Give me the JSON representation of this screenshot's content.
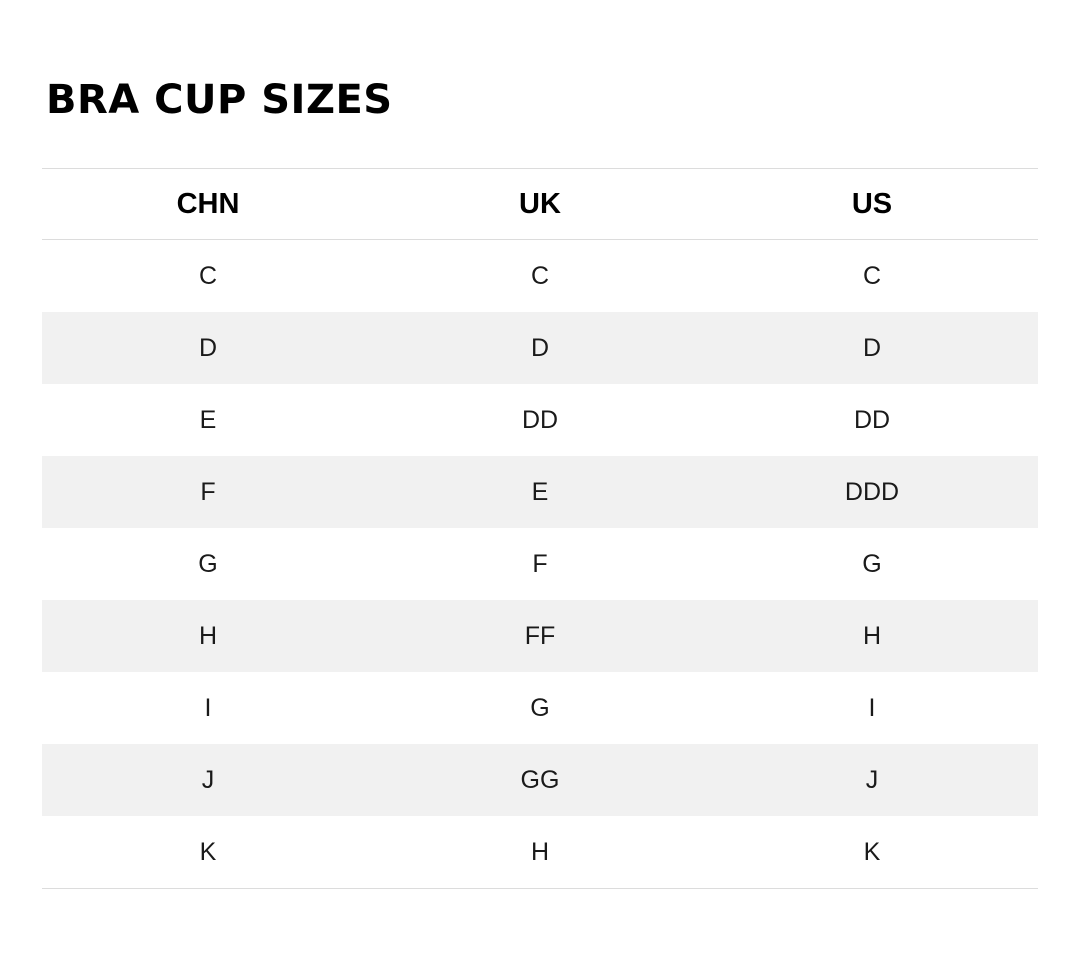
{
  "page": {
    "heading": "BRA CUP SIZES"
  },
  "size_table": {
    "columns": [
      "CHN",
      "UK",
      "US"
    ],
    "rows": [
      [
        "C",
        "C",
        "C"
      ],
      [
        "D",
        "D",
        "D"
      ],
      [
        "E",
        "DD",
        "DD"
      ],
      [
        "F",
        "E",
        "DDD"
      ],
      [
        "G",
        "F",
        "G"
      ],
      [
        "H",
        "FF",
        "H"
      ],
      [
        "I",
        "G",
        "I"
      ],
      [
        "J",
        "GG",
        "J"
      ],
      [
        "K",
        "H",
        "K"
      ]
    ]
  },
  "colors": {
    "stripe": "#f1f1f1",
    "border": "#dcdcdc",
    "heading_text": "#000000",
    "body_text": "#1a1a1a"
  }
}
